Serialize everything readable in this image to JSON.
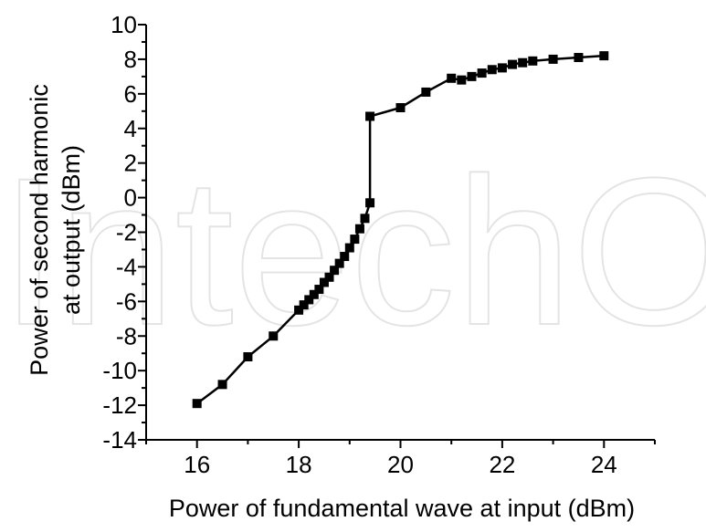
{
  "watermark": {
    "text": "IntechOpen"
  },
  "chart_data": {
    "type": "line",
    "title": "",
    "xlabel": "Power of fundamental wave at input (dBm)",
    "ylabel_lines": [
      "Power of second harmonic",
      "at output (dBm)"
    ],
    "xlim": [
      15,
      25
    ],
    "ylim": [
      -14,
      10
    ],
    "x_ticks": [
      16,
      18,
      20,
      22,
      24
    ],
    "y_ticks": [
      -14,
      -12,
      -10,
      -8,
      -6,
      -4,
      -2,
      0,
      2,
      4,
      6,
      8,
      10
    ],
    "grid": false,
    "legend": "none",
    "marker": "square",
    "color": "#000000",
    "series": [
      {
        "x": [
          16.0,
          16.5,
          17.0,
          17.5,
          18.0,
          18.1,
          18.2,
          18.3,
          18.4,
          18.5,
          18.6,
          18.7,
          18.8,
          18.9,
          19.0,
          19.1,
          19.2,
          19.3,
          19.4,
          19.4,
          20.0,
          20.5,
          21.0,
          21.2,
          21.4,
          21.6,
          21.8,
          22.0,
          22.2,
          22.4,
          22.6,
          23.0,
          23.5,
          24.0
        ],
        "y": [
          -11.9,
          -10.8,
          -9.2,
          -8.0,
          -6.5,
          -6.2,
          -5.9,
          -5.6,
          -5.3,
          -4.9,
          -4.6,
          -4.2,
          -3.8,
          -3.4,
          -2.9,
          -2.4,
          -1.8,
          -1.2,
          -0.3,
          4.7,
          5.2,
          6.1,
          6.9,
          6.8,
          7.0,
          7.2,
          7.4,
          7.5,
          7.7,
          7.8,
          7.9,
          8.0,
          8.1,
          8.2
        ]
      }
    ]
  }
}
